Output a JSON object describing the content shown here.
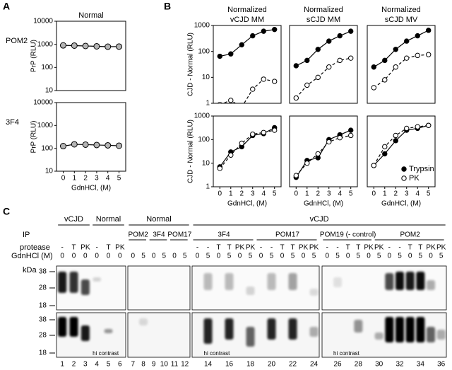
{
  "panel_labels": [
    "A",
    "B"
  ],
  "chart_data": [
    {
      "type": "line",
      "title_lines": [
        "Normal"
      ],
      "row_label": "POM2",
      "ylabel": "PrP (RLU)",
      "log_y": true,
      "xlim": [
        -0.6,
        5.6
      ],
      "ylim": [
        10,
        10000
      ],
      "yticks": [
        10,
        100,
        1000,
        10000
      ],
      "x": [
        0,
        1,
        2,
        3,
        4,
        5
      ],
      "series": [
        {
          "color": "#b4b4b4",
          "marker": "filled",
          "dashed": false,
          "values": [
            900,
            880,
            850,
            820,
            790,
            800
          ]
        }
      ]
    },
    {
      "type": "line",
      "row_label": "3F4",
      "ylabel": "PrP (RLU)",
      "xlabel": "GdnHCl, (M)",
      "log_y": true,
      "xlim": [
        -0.6,
        5.6
      ],
      "ylim": [
        10,
        10000
      ],
      "yticks": [
        10,
        100,
        1000,
        10000
      ],
      "xticks": [
        0,
        1,
        2,
        3,
        4,
        5
      ],
      "x": [
        0,
        1,
        2,
        3,
        4,
        5
      ],
      "series": [
        {
          "color": "#b4b4b4",
          "marker": "filled",
          "dashed": false,
          "values": [
            125,
            150,
            145,
            140,
            135,
            130
          ]
        }
      ]
    },
    {
      "type": "line",
      "title_lines": [
        "Normalized",
        "vCJD MM"
      ],
      "ylabel": "CJD - Normal (RLU)",
      "log_y": true,
      "xlim": [
        -0.6,
        5.6
      ],
      "ylim": [
        1,
        1000
      ],
      "yticks": [
        1,
        10,
        100,
        1000
      ],
      "x": [
        0,
        1,
        2,
        3,
        4,
        5
      ],
      "series": [
        {
          "color": "#000000",
          "marker": "filled",
          "dashed": false,
          "values": [
            65,
            80,
            180,
            400,
            600,
            700
          ]
        },
        {
          "color": "#000000",
          "marker": "open",
          "dashed": true,
          "values": [
            0.9,
            1.3,
            0.7,
            3.5,
            8.5,
            7
          ]
        }
      ]
    },
    {
      "type": "line",
      "title_lines": [
        "Normalized",
        "sCJD MM"
      ],
      "log_y": true,
      "xlim": [
        -0.6,
        5.6
      ],
      "ylim": [
        1,
        1000
      ],
      "x": [
        0,
        1,
        2,
        3,
        4,
        5
      ],
      "series": [
        {
          "color": "#000000",
          "marker": "filled",
          "dashed": false,
          "values": [
            28,
            45,
            120,
            250,
            400,
            600
          ]
        },
        {
          "color": "#000000",
          "marker": "open",
          "dashed": true,
          "values": [
            1.6,
            5,
            10,
            25,
            45,
            55
          ]
        }
      ]
    },
    {
      "type": "line",
      "title_lines": [
        "Normalized",
        "sCJD MV"
      ],
      "log_y": true,
      "xlim": [
        -0.6,
        5.6
      ],
      "ylim": [
        1,
        1000
      ],
      "x": [
        0,
        1,
        2,
        3,
        4,
        5
      ],
      "series": [
        {
          "color": "#000000",
          "marker": "filled",
          "dashed": false,
          "values": [
            25,
            45,
            120,
            250,
            400,
            650
          ]
        },
        {
          "color": "#000000",
          "marker": "open",
          "dashed": true,
          "values": [
            4,
            8,
            25,
            55,
            70,
            75
          ]
        }
      ]
    },
    {
      "type": "line",
      "ylabel": "CJD - Normal (RLU)",
      "xlabel": "GdnHCl, (M)",
      "log_y": true,
      "xlim": [
        -0.6,
        5.6
      ],
      "ylim": [
        1,
        1000
      ],
      "yticks": [
        1,
        10,
        100,
        1000
      ],
      "xticks": [
        0,
        1,
        2,
        3,
        4,
        5
      ],
      "x": [
        0,
        1,
        2,
        3,
        4,
        5
      ],
      "series": [
        {
          "color": "#000000",
          "marker": "filled",
          "dashed": false,
          "values": [
            7,
            30,
            50,
            150,
            180,
            320
          ]
        },
        {
          "color": "#000000",
          "marker": "open",
          "dashed": true,
          "values": [
            6,
            22,
            70,
            170,
            200,
            250
          ]
        }
      ]
    },
    {
      "type": "line",
      "xlabel": "GdnHCl, (M)",
      "log_y": true,
      "xlim": [
        -0.6,
        5.6
      ],
      "ylim": [
        1,
        1000
      ],
      "xticks": [
        0,
        1,
        2,
        3,
        4,
        5
      ],
      "x": [
        0,
        1,
        2,
        3,
        4,
        5
      ],
      "series": [
        {
          "color": "#000000",
          "marker": "filled",
          "dashed": false,
          "values": [
            2.5,
            13,
            17,
            100,
            160,
            250
          ]
        },
        {
          "color": "#000000",
          "marker": "open",
          "dashed": true,
          "values": [
            3,
            10,
            25,
            80,
            120,
            150
          ]
        }
      ]
    },
    {
      "type": "line",
      "xlabel": "GdnHCl, (M)",
      "log_y": true,
      "legend": "lower right",
      "xlim": [
        -0.6,
        5.6
      ],
      "ylim": [
        1,
        1000
      ],
      "xticks": [
        0,
        1,
        2,
        3,
        4,
        5
      ],
      "x": [
        0,
        1,
        2,
        3,
        4,
        5
      ],
      "series": [
        {
          "name": "Trypsin",
          "color": "#000000",
          "marker": "filled",
          "dashed": false,
          "values": [
            8,
            25,
            90,
            250,
            300,
            400
          ]
        },
        {
          "name": "PK",
          "color": "#000000",
          "marker": "open",
          "dashed": true,
          "values": [
            8,
            50,
            150,
            300,
            350,
            400
          ]
        }
      ]
    }
  ],
  "blot": {
    "label": "C",
    "groups": [
      "vCJD",
      "Normal",
      "Normal",
      "vCJD"
    ],
    "ip_label": "IP",
    "ip": [
      "POM2",
      "3F4",
      "POM17",
      "3F4",
      "POM17",
      "POM19 (- control)",
      "POM2"
    ],
    "protease_label": "protease",
    "protease": [
      "-",
      "T",
      "PK",
      "-",
      "T",
      "PK",
      null,
      null,
      null,
      null,
      null,
      null,
      "-",
      "-",
      "T",
      "T",
      "PK",
      "PK",
      "-",
      "-",
      "T",
      "T",
      "PK",
      "PK",
      "-",
      "-",
      "T",
      "T",
      "PK",
      "PK",
      "-",
      "-",
      "T",
      "T",
      "PK",
      "PK"
    ],
    "gdn_label": "GdnHCl (M)",
    "gdn": [
      0,
      0,
      0,
      0,
      0,
      0,
      0,
      5,
      0,
      5,
      0,
      5,
      0,
      5,
      0,
      5,
      0,
      5,
      0,
      5,
      0,
      5,
      0,
      5,
      0,
      5,
      0,
      5,
      0,
      5,
      0,
      5,
      0,
      5,
      0,
      5
    ],
    "kda_label": "kDa",
    "markers": [
      38,
      28,
      18
    ],
    "note": "hi contrast",
    "lane_numbers": [
      1,
      2,
      3,
      4,
      5,
      6,
      7,
      8,
      9,
      10,
      11,
      12,
      14,
      16,
      18,
      20,
      22,
      24,
      26,
      28,
      30,
      32,
      34,
      36
    ]
  }
}
